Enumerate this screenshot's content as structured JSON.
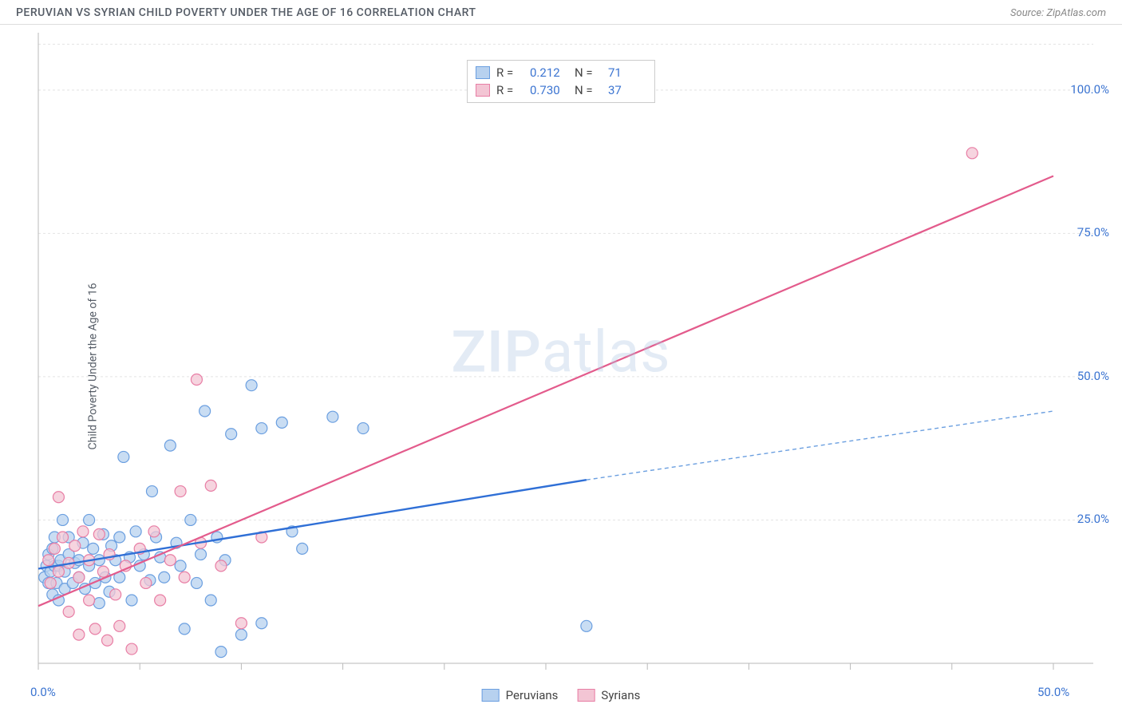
{
  "header": {
    "title": "PERUVIAN VS SYRIAN CHILD POVERTY UNDER THE AGE OF 16 CORRELATION CHART",
    "source_label": "Source: ",
    "source_name": "ZipAtlas.com"
  },
  "watermark": {
    "part1": "ZIP",
    "part2": "atlas"
  },
  "chart": {
    "type": "scatter",
    "y_axis_title": "Child Poverty Under the Age of 16",
    "background_color": "#ffffff",
    "grid_color": "#e4e4e4",
    "axis_color": "#bababa",
    "tick_label_color": "#3b74d1",
    "xlim": [
      0,
      50
    ],
    "ylim": [
      0,
      110
    ],
    "x_ticks": [
      0,
      5,
      10,
      15,
      20,
      25,
      30,
      35,
      40,
      45,
      50
    ],
    "x_tick_labels": {
      "0": "0.0%",
      "50": "50.0%"
    },
    "y_ticks": [
      25,
      50,
      75,
      100
    ],
    "y_tick_labels": {
      "25": "25.0%",
      "50": "50.0%",
      "75": "75.0%",
      "100": "100.0%"
    },
    "marker_radius": 7,
    "marker_stroke_width": 1.2,
    "series": [
      {
        "name": "Peruvians",
        "color_fill": "#b7d1ef",
        "color_stroke": "#6b9fe0",
        "R": "0.212",
        "N": "71",
        "regression": {
          "solid": {
            "x1": 0,
            "y1": 16.5,
            "x2": 27,
            "y2": 32,
            "width": 2.4,
            "color": "#2f6fd6"
          },
          "dashed": {
            "x1": 27,
            "y1": 32,
            "x2": 50,
            "y2": 44,
            "width": 1.4,
            "color": "#6b9fe0",
            "dash": "5,4"
          }
        },
        "points": [
          [
            0.3,
            15
          ],
          [
            0.4,
            17
          ],
          [
            0.5,
            14
          ],
          [
            0.5,
            19
          ],
          [
            0.6,
            16
          ],
          [
            0.7,
            12
          ],
          [
            0.7,
            20
          ],
          [
            0.8,
            17
          ],
          [
            0.8,
            22
          ],
          [
            0.9,
            14
          ],
          [
            1.0,
            17
          ],
          [
            1.0,
            11
          ],
          [
            1.1,
            18
          ],
          [
            1.2,
            25
          ],
          [
            1.3,
            16
          ],
          [
            1.3,
            13
          ],
          [
            1.5,
            19
          ],
          [
            1.5,
            22
          ],
          [
            1.7,
            14
          ],
          [
            1.8,
            17.5
          ],
          [
            2.0,
            15
          ],
          [
            2.0,
            18
          ],
          [
            2.2,
            21
          ],
          [
            2.3,
            13
          ],
          [
            2.5,
            17
          ],
          [
            2.5,
            25
          ],
          [
            2.7,
            20
          ],
          [
            2.8,
            14
          ],
          [
            3.0,
            18
          ],
          [
            3.0,
            10.5
          ],
          [
            3.2,
            22.5
          ],
          [
            3.3,
            15
          ],
          [
            3.5,
            12.5
          ],
          [
            3.6,
            20.5
          ],
          [
            3.8,
            18
          ],
          [
            4.0,
            15
          ],
          [
            4.0,
            22
          ],
          [
            4.2,
            36
          ],
          [
            4.5,
            18.5
          ],
          [
            4.6,
            11
          ],
          [
            4.8,
            23
          ],
          [
            5.0,
            17
          ],
          [
            5.2,
            19
          ],
          [
            5.5,
            14.5
          ],
          [
            5.6,
            30
          ],
          [
            5.8,
            22
          ],
          [
            6.0,
            18.5
          ],
          [
            6.2,
            15
          ],
          [
            6.5,
            38
          ],
          [
            6.8,
            21
          ],
          [
            7.0,
            17
          ],
          [
            7.2,
            6
          ],
          [
            7.5,
            25
          ],
          [
            7.8,
            14
          ],
          [
            8.0,
            19
          ],
          [
            8.2,
            44
          ],
          [
            8.5,
            11
          ],
          [
            8.8,
            22
          ],
          [
            9.0,
            2
          ],
          [
            9.2,
            18
          ],
          [
            9.5,
            40
          ],
          [
            10,
            5
          ],
          [
            10.5,
            48.5
          ],
          [
            11,
            41
          ],
          [
            11,
            7
          ],
          [
            12,
            42
          ],
          [
            12.5,
            23
          ],
          [
            13,
            20
          ],
          [
            14.5,
            43
          ],
          [
            16,
            41
          ],
          [
            27,
            6.5
          ]
        ]
      },
      {
        "name": "Syrians",
        "color_fill": "#f3c5d4",
        "color_stroke": "#e87ea5",
        "R": "0.730",
        "N": "37",
        "regression": {
          "solid": {
            "x1": 0,
            "y1": 10,
            "x2": 50,
            "y2": 85,
            "width": 2.2,
            "color": "#e35b8c"
          }
        },
        "points": [
          [
            0.5,
            18
          ],
          [
            0.6,
            14
          ],
          [
            0.8,
            20
          ],
          [
            1.0,
            16
          ],
          [
            1.0,
            29
          ],
          [
            1.2,
            22
          ],
          [
            1.5,
            17.5
          ],
          [
            1.5,
            9
          ],
          [
            1.8,
            20.5
          ],
          [
            2.0,
            15
          ],
          [
            2.0,
            5
          ],
          [
            2.2,
            23
          ],
          [
            2.5,
            11
          ],
          [
            2.5,
            18
          ],
          [
            2.8,
            6
          ],
          [
            3.0,
            22.5
          ],
          [
            3.2,
            16
          ],
          [
            3.4,
            4
          ],
          [
            3.5,
            19
          ],
          [
            3.8,
            12
          ],
          [
            4.0,
            6.5
          ],
          [
            4.3,
            17
          ],
          [
            4.6,
            2.5
          ],
          [
            5.0,
            20
          ],
          [
            5.3,
            14
          ],
          [
            5.7,
            23
          ],
          [
            6.0,
            11
          ],
          [
            6.5,
            18
          ],
          [
            7.0,
            30
          ],
          [
            7.2,
            15
          ],
          [
            7.8,
            49.5
          ],
          [
            8.0,
            21
          ],
          [
            8.5,
            31
          ],
          [
            9,
            17
          ],
          [
            10,
            7
          ],
          [
            11,
            22
          ],
          [
            46,
            89
          ]
        ]
      }
    ]
  },
  "top_legend": {
    "R_label": "R =",
    "N_label": "N ="
  },
  "bottom_legend": {
    "items": [
      "Peruvians",
      "Syrians"
    ]
  }
}
